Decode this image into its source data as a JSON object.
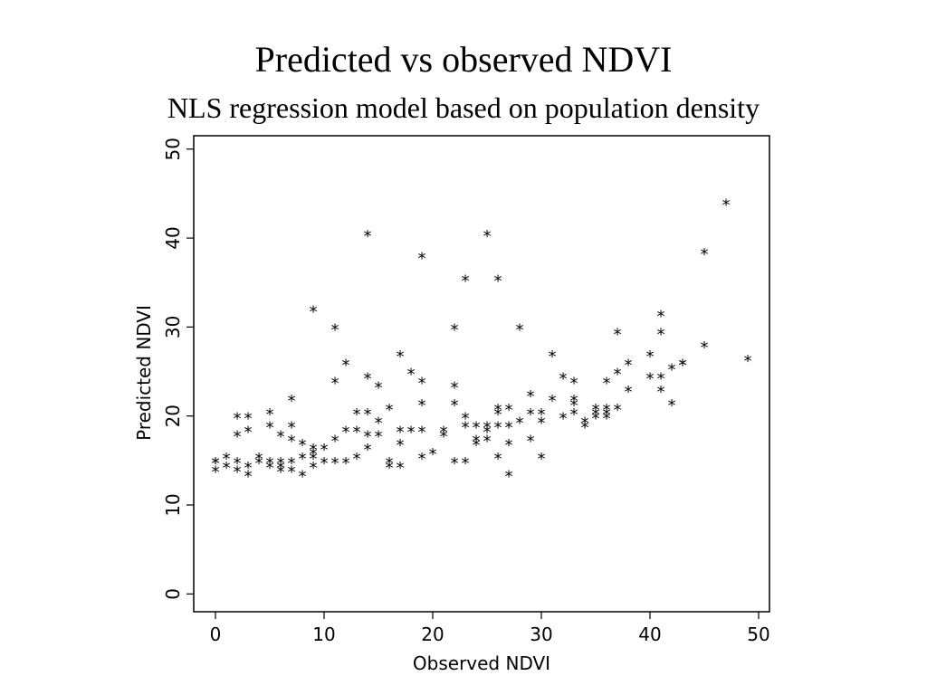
{
  "chart_data": {
    "type": "scatter",
    "title": "Predicted vs observed NDVI",
    "subtitle": "NLS regression model based on population density",
    "xlabel": "Observed NDVI",
    "ylabel": "Predicted NDVI",
    "xlim": [
      -2,
      51
    ],
    "ylim": [
      -2,
      51.5
    ],
    "xticks": [
      0,
      10,
      20,
      30,
      40,
      50
    ],
    "yticks": [
      0,
      10,
      20,
      30,
      40,
      50
    ],
    "grid": false,
    "legend": "none",
    "marker": "*",
    "points": [
      [
        0,
        15
      ],
      [
        0,
        14
      ],
      [
        0,
        15
      ],
      [
        1,
        15.5
      ],
      [
        1,
        14.5
      ],
      [
        2,
        20
      ],
      [
        2,
        18
      ],
      [
        2,
        15
      ],
      [
        2,
        14
      ],
      [
        3,
        20
      ],
      [
        3,
        18.5
      ],
      [
        3,
        14.5
      ],
      [
        3,
        13.5
      ],
      [
        4,
        15.5
      ],
      [
        4,
        15
      ],
      [
        5,
        20.5
      ],
      [
        5,
        19
      ],
      [
        5,
        15
      ],
      [
        5,
        14.5
      ],
      [
        6,
        18
      ],
      [
        6,
        15
      ],
      [
        6,
        14
      ],
      [
        6,
        14.5
      ],
      [
        7,
        22
      ],
      [
        7,
        19
      ],
      [
        7,
        17.5
      ],
      [
        7,
        15
      ],
      [
        7,
        14
      ],
      [
        8,
        17
      ],
      [
        8,
        15.5
      ],
      [
        8,
        13.5
      ],
      [
        9,
        32
      ],
      [
        9,
        16.5
      ],
      [
        9,
        16
      ],
      [
        9,
        15.5
      ],
      [
        9,
        14.5
      ],
      [
        10,
        16.5
      ],
      [
        10,
        15
      ],
      [
        11,
        30
      ],
      [
        11,
        24
      ],
      [
        11,
        17.5
      ],
      [
        11,
        15
      ],
      [
        12,
        26
      ],
      [
        12,
        18.5
      ],
      [
        12,
        15
      ],
      [
        13,
        20.5
      ],
      [
        13,
        18.5
      ],
      [
        13,
        15.5
      ],
      [
        14,
        40.5
      ],
      [
        14,
        24.5
      ],
      [
        14,
        20.5
      ],
      [
        14,
        18
      ],
      [
        14,
        16.5
      ],
      [
        15,
        23.5
      ],
      [
        15,
        19.5
      ],
      [
        15,
        18
      ],
      [
        16,
        21
      ],
      [
        16,
        15
      ],
      [
        16,
        14.5
      ],
      [
        17,
        27
      ],
      [
        17,
        18.5
      ],
      [
        17,
        17
      ],
      [
        17,
        14.5
      ],
      [
        18,
        25
      ],
      [
        18,
        18.5
      ],
      [
        19,
        38
      ],
      [
        19,
        24
      ],
      [
        19,
        21.5
      ],
      [
        19,
        18.5
      ],
      [
        19,
        15.5
      ],
      [
        20,
        16
      ],
      [
        21,
        18.5
      ],
      [
        21,
        18
      ],
      [
        22,
        30
      ],
      [
        22,
        23.5
      ],
      [
        22,
        21.5
      ],
      [
        22,
        15
      ],
      [
        23,
        35.5
      ],
      [
        23,
        20
      ],
      [
        23,
        19
      ],
      [
        23,
        15
      ],
      [
        24,
        19
      ],
      [
        24,
        17.5
      ],
      [
        24,
        17
      ],
      [
        25,
        40.5
      ],
      [
        25,
        19
      ],
      [
        25,
        18.5
      ],
      [
        25,
        17.5
      ],
      [
        26,
        35.5
      ],
      [
        26,
        21
      ],
      [
        26,
        20.5
      ],
      [
        26,
        19
      ],
      [
        26,
        15.5
      ],
      [
        27,
        21
      ],
      [
        27,
        19
      ],
      [
        27,
        17
      ],
      [
        27,
        13.5
      ],
      [
        28,
        30
      ],
      [
        28,
        19.5
      ],
      [
        29,
        22.5
      ],
      [
        29,
        20.5
      ],
      [
        29,
        17.5
      ],
      [
        30,
        20.5
      ],
      [
        30,
        19.5
      ],
      [
        30,
        15.5
      ],
      [
        31,
        27
      ],
      [
        31,
        22
      ],
      [
        32,
        24.5
      ],
      [
        32,
        20
      ],
      [
        33,
        24
      ],
      [
        33,
        22
      ],
      [
        33,
        21.5
      ],
      [
        33,
        20.5
      ],
      [
        34,
        19.5
      ],
      [
        34,
        19
      ],
      [
        35,
        21
      ],
      [
        35,
        20.5
      ],
      [
        35,
        20
      ],
      [
        36,
        24
      ],
      [
        36,
        21
      ],
      [
        36,
        20.5
      ],
      [
        36,
        20
      ],
      [
        37,
        29.5
      ],
      [
        37,
        25
      ],
      [
        37,
        21
      ],
      [
        38,
        26
      ],
      [
        38,
        23
      ],
      [
        40,
        27
      ],
      [
        40,
        24.5
      ],
      [
        41,
        31.5
      ],
      [
        41,
        29.5
      ],
      [
        41,
        24.5
      ],
      [
        41,
        23
      ],
      [
        42,
        25.5
      ],
      [
        42,
        21.5
      ],
      [
        43,
        26
      ],
      [
        43,
        26
      ],
      [
        45,
        38.5
      ],
      [
        45,
        28
      ],
      [
        47,
        44
      ],
      [
        49,
        26.5
      ]
    ]
  }
}
